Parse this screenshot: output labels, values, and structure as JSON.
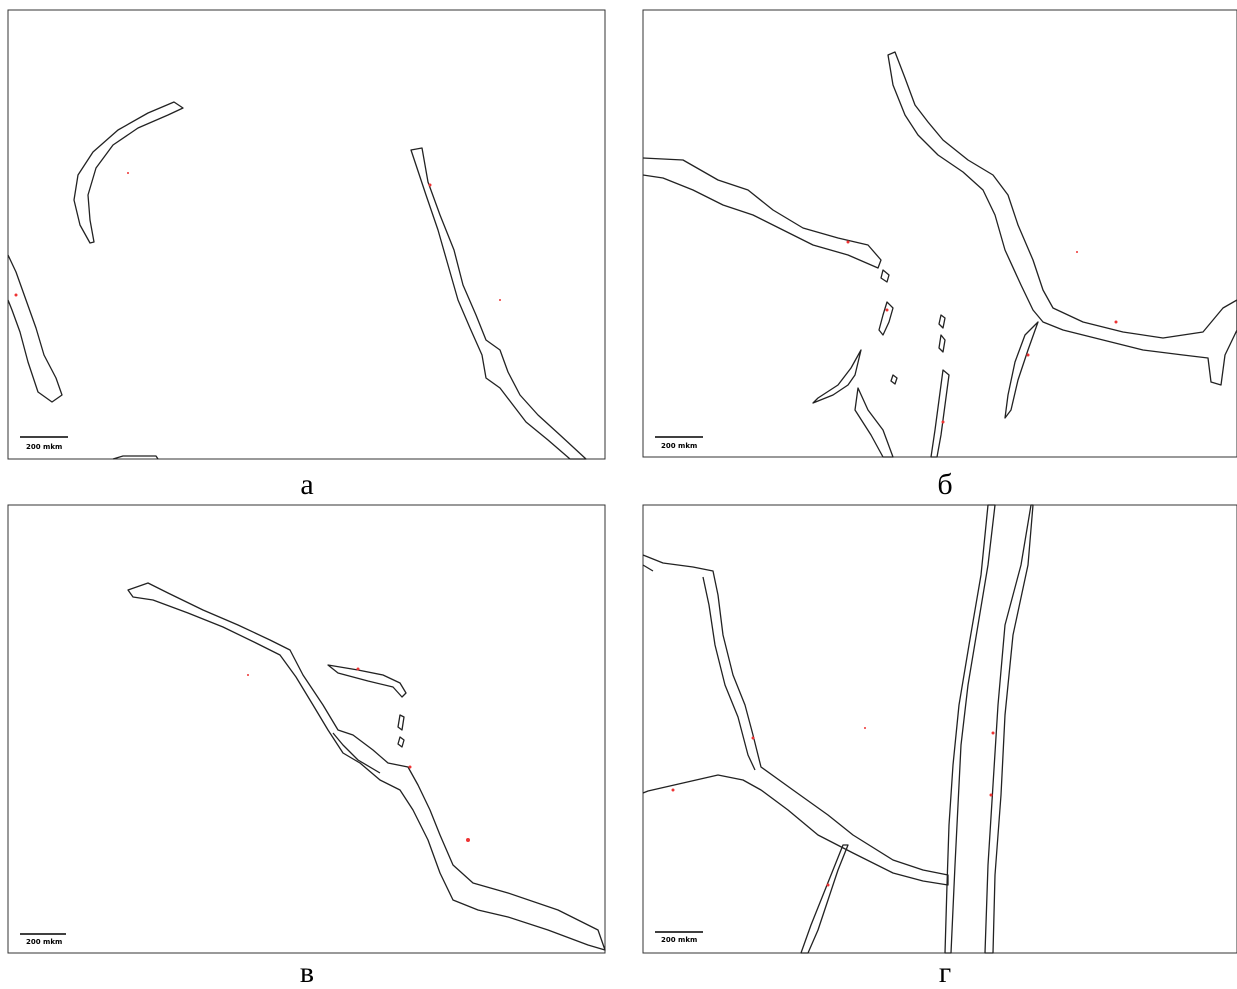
{
  "panels": [
    {
      "label": "а",
      "scale_bar": "200 mkm"
    },
    {
      "label": "б",
      "scale_bar": "200 mkm"
    },
    {
      "label": "в",
      "scale_bar": "200 mkm"
    },
    {
      "label": "г",
      "scale_bar": "200 mkm"
    }
  ]
}
